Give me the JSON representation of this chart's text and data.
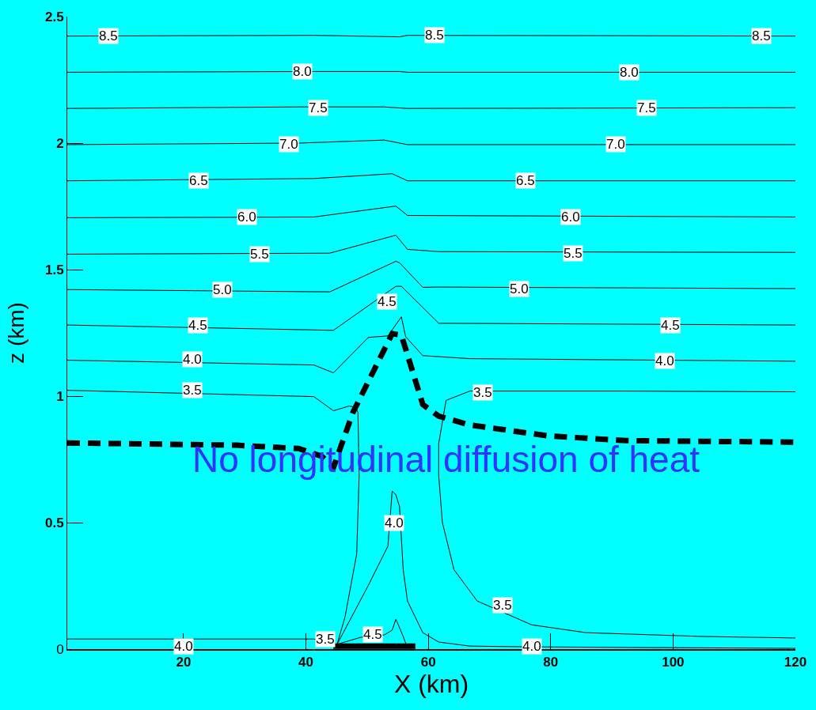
{
  "chart_data": {
    "type": "line",
    "xlabel": "X (km)",
    "ylabel": "z (km)",
    "xlim": [
      1,
      120
    ],
    "xticks": [
      20,
      40,
      60,
      80,
      100,
      120
    ],
    "ylim": [
      0,
      2.5
    ],
    "yticks": [
      0,
      0.5,
      1,
      1.5,
      2,
      2.5
    ],
    "marker": "none",
    "line_style": "solid",
    "series": [
      {
        "color": "#000000",
        "x": [
          1,
          41.3,
          55.3,
          56.6,
          120
        ],
        "values": [
          2.423,
          2.426,
          2.42,
          2.426,
          2.423
        ]
      },
      {
        "color": "#000000",
        "x": [
          1,
          41.3,
          55.3,
          56.6,
          120
        ],
        "values": [
          2.28,
          2.283,
          2.283,
          2.28,
          2.28
        ]
      },
      {
        "color": "#000000",
        "x": [
          1,
          38.8,
          52.8,
          56.6,
          120
        ],
        "values": [
          2.137,
          2.143,
          2.143,
          2.137,
          2.14
        ]
      },
      {
        "color": "#000000",
        "x": [
          1,
          38.8,
          52.8,
          56.6,
          120
        ],
        "values": [
          1.994,
          2.0,
          2.012,
          1.994,
          1.994
        ]
      },
      {
        "color": "#000000",
        "x": [
          1,
          41.3,
          54.1,
          56.6,
          120
        ],
        "values": [
          1.851,
          1.86,
          1.879,
          1.851,
          1.851
        ]
      },
      {
        "color": "#000000",
        "x": [
          1,
          41.3,
          54.7,
          56.6,
          120
        ],
        "values": [
          1.705,
          1.708,
          1.751,
          1.714,
          1.708
        ]
      },
      {
        "color": "#000000",
        "x": [
          1,
          43.9,
          54.7,
          56.6,
          61.7,
          120
        ],
        "values": [
          1.561,
          1.565,
          1.636,
          1.58,
          1.571,
          1.568
        ]
      },
      {
        "color": "#000000",
        "x": [
          1,
          43.9,
          54.7,
          55.3,
          59.1,
          61.7,
          120
        ],
        "values": [
          1.421,
          1.412,
          1.533,
          1.527,
          1.43,
          1.431,
          1.425
        ]
      },
      {
        "color": "#000000",
        "x": [
          1,
          44.5,
          54.7,
          55.6,
          61.7,
          120
        ],
        "values": [
          1.281,
          1.26,
          1.434,
          1.434,
          1.288,
          1.281
        ]
      },
      {
        "color": "#000000",
        "x": [
          1,
          41.3,
          44.5,
          50.2,
          53.4,
          55.6,
          56.3,
          59.1,
          66.8,
          120
        ],
        "values": [
          1.142,
          1.123,
          1.092,
          1.232,
          1.238,
          1.313,
          1.235,
          1.16,
          1.148,
          1.138
        ]
      },
      {
        "color": "#000000",
        "x": [
          1,
          41.3,
          44.5,
          47.1,
          48.1,
          48.5,
          48.7,
          48.3,
          46.4,
          45.1,
          41.3,
          1
        ],
        "values": [
          1.023,
          0.998,
          0.942,
          0.961,
          0.955,
          0.936,
          0.687,
          0.376,
          0.128,
          0.019,
          0.04,
          0.04
        ]
      },
      {
        "color": "#000000",
        "x": [
          120,
          92.2,
          66.8,
          62.9,
          61.7,
          61.7,
          62.3,
          64.2,
          68.0,
          76.9,
          85.8,
          104.9,
          120
        ],
        "values": [
          1.017,
          1.02,
          1.02,
          0.983,
          0.812,
          0.687,
          0.501,
          0.314,
          0.19,
          0.096,
          0.065,
          0.05,
          0.044
        ]
      },
      {
        "color": "#000000",
        "x": [
          45.1,
          50.2,
          53.4,
          54.1,
          54.7,
          55.3,
          55.9,
          56.6,
          59.1,
          61.7,
          66.8,
          76.9,
          120
        ],
        "values": [
          0.019,
          0.252,
          0.407,
          0.625,
          0.61,
          0.563,
          0.314,
          0.19,
          0.065,
          0.028,
          0.012,
          0.009,
          0.003
        ]
      },
      {
        "color": "#000000",
        "x": [
          45.1,
          49.0,
          52.8,
          54.1,
          54.7,
          55.1,
          55.9,
          56.6
        ],
        "values": [
          0.019,
          0.047,
          0.056,
          0.075,
          0.118,
          0.096,
          0.05,
          0.003
        ]
      },
      {
        "color": "#000000",
        "line_style": "solid",
        "x": [
          44.5,
          57.9
        ],
        "values": [
          0.012,
          0.012
        ]
      },
      {
        "color": "#000000",
        "line_style": "dashed",
        "x": [
          1,
          28.6,
          38.8,
          42.6,
          44.5,
          47.7,
          54.1,
          55.6,
          59.1,
          61.7,
          66.8,
          79.5,
          92.2,
          120
        ],
        "values": [
          0.815,
          0.806,
          0.793,
          0.762,
          0.718,
          0.936,
          1.247,
          1.241,
          0.967,
          0.921,
          0.886,
          0.843,
          0.824,
          0.818
        ]
      }
    ],
    "annotations": [
      "No longitudinal diffusion of heat",
      {
        "text": "8.5",
        "x": 7.7,
        "y": 2.423
      },
      {
        "text": "8.5",
        "x": 61.0,
        "y": 2.426
      },
      {
        "text": "8.5",
        "x": 114.4,
        "y": 2.423
      },
      {
        "text": "8.0",
        "x": 39.4,
        "y": 2.283
      },
      {
        "text": "8.0",
        "x": 92.8,
        "y": 2.28
      },
      {
        "text": "7.5",
        "x": 42.0,
        "y": 2.14
      },
      {
        "text": "7.5",
        "x": 95.7,
        "y": 2.14
      },
      {
        "text": "7.0",
        "x": 37.2,
        "y": 1.994
      },
      {
        "text": "7.0",
        "x": 90.6,
        "y": 1.994
      },
      {
        "text": "6.5",
        "x": 22.5,
        "y": 1.851
      },
      {
        "text": "6.5",
        "x": 75.9,
        "y": 1.851
      },
      {
        "text": "6.0",
        "x": 30.3,
        "y": 1.708
      },
      {
        "text": "6.0",
        "x": 83.3,
        "y": 1.708
      },
      {
        "text": "5.5",
        "x": 32.4,
        "y": 1.561
      },
      {
        "text": "5.5",
        "x": 83.7,
        "y": 1.565
      },
      {
        "text": "5.0",
        "x": 26.4,
        "y": 1.421
      },
      {
        "text": "5.0",
        "x": 74.8,
        "y": 1.425
      },
      {
        "text": "4.5",
        "x": 53.2,
        "y": 1.372
      },
      {
        "text": "4.5",
        "x": 22.3,
        "y": 1.281
      },
      {
        "text": "4.5",
        "x": 99.5,
        "y": 1.281
      },
      {
        "text": "4.0",
        "x": 21.4,
        "y": 1.145
      },
      {
        "text": "4.0",
        "x": 98.6,
        "y": 1.138
      },
      {
        "text": "4.0",
        "x": 54.4,
        "y": 0.5
      },
      {
        "text": "4.0",
        "x": 20.0,
        "y": 0.01
      },
      {
        "text": "4.0",
        "x": 76.9,
        "y": 0.01
      },
      {
        "text": "3.5",
        "x": 21.4,
        "y": 1.023
      },
      {
        "text": "3.5",
        "x": 68.9,
        "y": 1.014
      },
      {
        "text": "3.5",
        "x": 72.1,
        "y": 0.174
      },
      {
        "text": "3.5",
        "x": 43.2,
        "y": 0.04
      },
      {
        "text": "4.5",
        "x": 50.9,
        "y": 0.059
      }
    ]
  }
}
